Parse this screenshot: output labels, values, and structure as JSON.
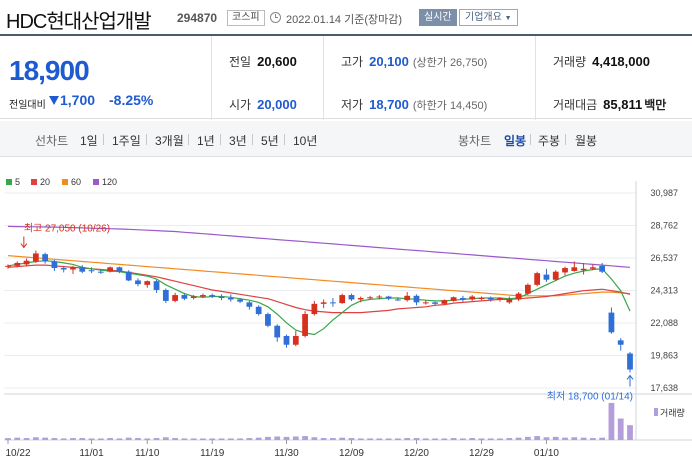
{
  "header": {
    "name": "HDC현대산업개발",
    "code": "294870",
    "market": "코스피",
    "base_date": "2022.01.14 기준(장마감)",
    "realtime_label": "실시간",
    "company_label": "기업개요"
  },
  "summary": {
    "current_price": "18,900",
    "change_label": "전일대비",
    "change_value": "1,700",
    "change_rate": "-8.25%",
    "prev_close_label": "전일",
    "prev_close": "20,600",
    "open_label": "시가",
    "open": "20,000",
    "high_label": "고가",
    "high": "20,100",
    "upper_limit": "(상한가 26,750)",
    "low_label": "저가",
    "low": "18,700",
    "lower_limit": "(하한가 14,450)",
    "volume_label": "거래량",
    "volume": "4,418,000",
    "amount_label": "거래대금",
    "amount": "85,811",
    "amount_unit": "백만"
  },
  "periods": {
    "line_label": "선차트",
    "line_items": [
      "1일",
      "1주일",
      "3개월",
      "1년",
      "3년",
      "5년",
      "10년"
    ],
    "candle_label": "봉차트",
    "candle_items": [
      "일봉",
      "주봉",
      "월봉"
    ],
    "active_candle": "일봉"
  },
  "colors": {
    "up": "#d7301f",
    "down": "#2f6fd6",
    "ma5": "#3aa64a",
    "ma20": "#e04040",
    "ma60": "#f08c22",
    "ma120": "#9b59c9",
    "volume": "#b39ddb"
  },
  "chart_data": {
    "type": "candlestick",
    "legend": [
      "5",
      "20",
      "60",
      "120"
    ],
    "y_ticks": [
      "30,987",
      "28,762",
      "26,537",
      "24,313",
      "22,088",
      "19,863",
      "17,638"
    ],
    "ylim": [
      17638,
      30987
    ],
    "x_ticks": [
      "10/22",
      "11/01",
      "11/10",
      "11/19",
      "11/30",
      "12/09",
      "12/20",
      "12/29",
      "01/10"
    ],
    "volume_legend": "거래량",
    "annotations": {
      "high_label": "최고 27,050 (10/26)",
      "low_label": "최저 18,700 (01/14)"
    },
    "candles": [
      [
        25950,
        26100,
        25800,
        26000
      ],
      [
        26000,
        26300,
        25900,
        26200
      ],
      [
        26100,
        26500,
        25950,
        26350
      ],
      [
        26300,
        27050,
        26200,
        26850
      ],
      [
        26800,
        26900,
        26150,
        26300
      ],
      [
        26300,
        26400,
        25650,
        25850
      ],
      [
        25850,
        26000,
        25550,
        25750
      ],
      [
        25750,
        26000,
        25450,
        25900
      ],
      [
        25900,
        26050,
        25500,
        25600
      ],
      [
        25700,
        25900,
        25500,
        25650
      ],
      [
        25600,
        25750,
        25450,
        25550
      ],
      [
        25600,
        25950,
        25550,
        25900
      ],
      [
        25900,
        25950,
        25500,
        25600
      ],
      [
        25600,
        25700,
        24950,
        25000
      ],
      [
        25000,
        25150,
        24600,
        24750
      ],
      [
        24700,
        25000,
        24500,
        24950
      ],
      [
        24950,
        25050,
        24150,
        24350
      ],
      [
        24350,
        24450,
        23450,
        23600
      ],
      [
        23600,
        24150,
        23500,
        24000
      ],
      [
        24000,
        24150,
        23650,
        23750
      ],
      [
        23800,
        24000,
        23700,
        23900
      ],
      [
        23900,
        24100,
        23800,
        24000
      ],
      [
        24000,
        24100,
        23800,
        23900
      ],
      [
        23900,
        24050,
        23650,
        23800
      ],
      [
        23800,
        24050,
        23550,
        23700
      ],
      [
        23700,
        23800,
        23450,
        23550
      ],
      [
        23500,
        23600,
        23000,
        23200
      ],
      [
        23200,
        23300,
        22600,
        22700
      ],
      [
        22700,
        22800,
        21800,
        21900
      ],
      [
        21900,
        22000,
        20800,
        21100
      ],
      [
        21200,
        21300,
        20400,
        20600
      ],
      [
        20600,
        21550,
        20500,
        21200
      ],
      [
        21200,
        22900,
        21100,
        22700
      ],
      [
        22700,
        23600,
        22600,
        23400
      ],
      [
        23400,
        23700,
        23100,
        23500
      ],
      [
        23500,
        23800,
        23200,
        23450
      ],
      [
        23450,
        24100,
        23400,
        24000
      ],
      [
        24000,
        24100,
        23600,
        23700
      ],
      [
        23700,
        23900,
        23500,
        23800
      ],
      [
        23800,
        23950,
        23700,
        23850
      ],
      [
        23850,
        24000,
        23700,
        23900
      ],
      [
        23900,
        23950,
        23650,
        23750
      ],
      [
        23700,
        23850,
        23600,
        23650
      ],
      [
        23650,
        24200,
        23550,
        23950
      ],
      [
        23950,
        24050,
        23300,
        23500
      ],
      [
        23500,
        23650,
        23350,
        23500
      ],
      [
        23500,
        23550,
        23300,
        23400
      ],
      [
        23400,
        23700,
        23350,
        23650
      ],
      [
        23600,
        23900,
        23550,
        23850
      ],
      [
        23800,
        23950,
        23550,
        23700
      ],
      [
        23700,
        24000,
        23600,
        23900
      ],
      [
        23800,
        23900,
        23650,
        23800
      ],
      [
        23800,
        23900,
        23550,
        23700
      ],
      [
        23700,
        23850,
        23550,
        23800
      ],
      [
        23500,
        23900,
        23400,
        23700
      ],
      [
        23700,
        24200,
        23600,
        24100
      ],
      [
        24100,
        24800,
        24000,
        24700
      ],
      [
        24700,
        25600,
        24600,
        25500
      ],
      [
        25400,
        25800,
        24900,
        25050
      ],
      [
        25050,
        25700,
        24950,
        25600
      ],
      [
        25550,
        25950,
        25350,
        25850
      ],
      [
        25650,
        26300,
        25600,
        25900
      ],
      [
        25700,
        26200,
        25400,
        25800
      ],
      [
        25800,
        26100,
        25700,
        25900
      ],
      [
        26000,
        26200,
        25500,
        25600
      ],
      [
        22800,
        23150,
        21350,
        21450
      ],
      [
        20900,
        21050,
        20200,
        20600
      ],
      [
        20000,
        20100,
        18700,
        18900
      ]
    ],
    "volume": [
      0.05,
      0.06,
      0.05,
      0.07,
      0.06,
      0.05,
      0.04,
      0.05,
      0.05,
      0.04,
      0.04,
      0.05,
      0.04,
      0.06,
      0.05,
      0.04,
      0.05,
      0.07,
      0.05,
      0.04,
      0.04,
      0.04,
      0.04,
      0.04,
      0.04,
      0.04,
      0.05,
      0.06,
      0.08,
      0.09,
      0.08,
      0.09,
      0.1,
      0.07,
      0.05,
      0.05,
      0.06,
      0.05,
      0.04,
      0.04,
      0.04,
      0.04,
      0.04,
      0.05,
      0.05,
      0.04,
      0.04,
      0.04,
      0.05,
      0.04,
      0.05,
      0.04,
      0.04,
      0.04,
      0.05,
      0.06,
      0.08,
      0.1,
      0.07,
      0.08,
      0.06,
      0.07,
      0.06,
      0.05,
      0.06,
      0.95,
      0.55,
      0.38
    ],
    "ma5": [
      26000,
      26100,
      26200,
      26300,
      26350,
      26300,
      26200,
      26100,
      25900,
      25800,
      25700,
      25650,
      25600,
      25500,
      25400,
      25300,
      25100,
      24700,
      24400,
      24100,
      23900,
      23850,
      23900,
      23900,
      23850,
      23750,
      23650,
      23500,
      23200,
      22700,
      22100,
      21600,
      21400,
      21300,
      21700,
      22300,
      22800,
      23300,
      23600,
      23700,
      23750,
      23800,
      23800,
      23750,
      23700,
      23650,
      23600,
      23600,
      23650,
      23700,
      23750,
      23800,
      23800,
      23800,
      23750,
      23800,
      24100,
      24400,
      24700,
      25000,
      25300,
      25500,
      25650,
      25750,
      25800,
      25100,
      24300,
      22900
    ],
    "ma20": [
      25900,
      25950,
      26000,
      26050,
      26050,
      26000,
      25950,
      25900,
      25850,
      25800,
      25750,
      25700,
      25650,
      25550,
      25450,
      25350,
      25250,
      25100,
      24950,
      24800,
      24650,
      24500,
      24350,
      24250,
      24150,
      24050,
      23950,
      23850,
      23750,
      23550,
      23350,
      23150,
      23000,
      22900,
      22850,
      22800,
      22800,
      22800,
      22800,
      22850,
      22900,
      22950,
      23050,
      23100,
      23150,
      23200,
      23300,
      23350,
      23450,
      23500,
      23550,
      23600,
      23650,
      23700,
      23700,
      23750,
      23800,
      23850,
      23900,
      24000,
      24100,
      24200,
      24300,
      24350,
      24400,
      24300,
      24200,
      24050
    ],
    "ma60": [
      26700,
      26650,
      26600,
      26550,
      26500,
      26450,
      26400,
      26350,
      26300,
      26250,
      26200,
      26150,
      26100,
      26050,
      26000,
      25950,
      25900,
      25850,
      25800,
      25750,
      25700,
      25650,
      25600,
      25550,
      25500,
      25450,
      25400,
      25350,
      25300,
      25250,
      25200,
      25150,
      25100,
      25050,
      25000,
      24950,
      24900,
      24850,
      24800,
      24750,
      24700,
      24650,
      24600,
      24550,
      24500,
      24450,
      24400,
      24350,
      24300,
      24250,
      24200,
      24150,
      24100,
      24050,
      24000,
      23950,
      23950,
      23950,
      23950,
      23950,
      24000,
      24050,
      24100,
      24150,
      24200,
      24200,
      24150,
      24100
    ],
    "ma120": [
      28700,
      28690,
      28680,
      28670,
      28660,
      28650,
      28640,
      28620,
      28600,
      28580,
      28560,
      28540,
      28520,
      28500,
      28470,
      28440,
      28410,
      28380,
      28350,
      28300,
      28250,
      28200,
      28150,
      28100,
      28050,
      28000,
      27950,
      27900,
      27850,
      27800,
      27750,
      27700,
      27650,
      27600,
      27550,
      27500,
      27450,
      27400,
      27350,
      27300,
      27250,
      27200,
      27150,
      27100,
      27050,
      27000,
      26950,
      26900,
      26850,
      26800,
      26750,
      26700,
      26650,
      26600,
      26550,
      26500,
      26450,
      26400,
      26350,
      26300,
      26250,
      26200,
      26150,
      26100,
      26050,
      26000,
      25950,
      25900
    ]
  }
}
